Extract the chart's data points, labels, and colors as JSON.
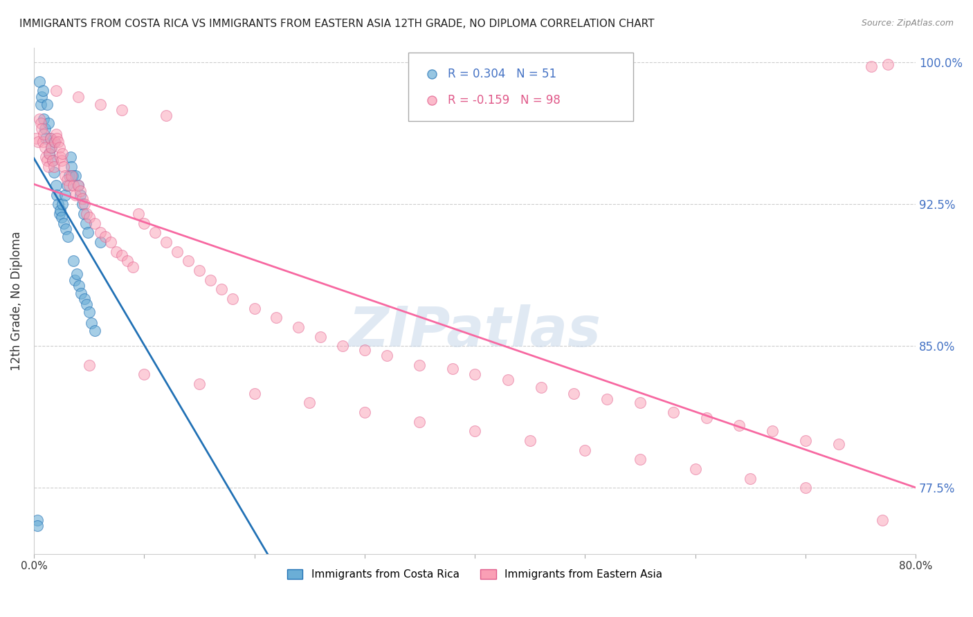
{
  "title": "IMMIGRANTS FROM COSTA RICA VS IMMIGRANTS FROM EASTERN ASIA 12TH GRADE, NO DIPLOMA CORRELATION CHART",
  "source": "Source: ZipAtlas.com",
  "ylabel": "12th Grade, No Diploma",
  "xlim": [
    0.0,
    0.8
  ],
  "ylim": [
    0.74,
    1.008
  ],
  "yticks": [
    0.775,
    0.85,
    0.925,
    1.0
  ],
  "yticklabels": [
    "77.5%",
    "85.0%",
    "92.5%",
    "100.0%"
  ],
  "blue_color": "#6baed6",
  "pink_color": "#fa9fb5",
  "blue_line_color": "#2171b5",
  "pink_line_color": "#f768a1",
  "watermark": "ZIPatlas",
  "legend_label1": "Immigrants from Costa Rica",
  "legend_label2": "Immigrants from Eastern Asia",
  "blue_scatter_x": [
    0.003,
    0.005,
    0.006,
    0.007,
    0.008,
    0.009,
    0.01,
    0.011,
    0.012,
    0.013,
    0.014,
    0.015,
    0.016,
    0.017,
    0.018,
    0.019,
    0.02,
    0.021,
    0.022,
    0.023,
    0.024,
    0.025,
    0.026,
    0.027,
    0.028,
    0.029,
    0.03,
    0.031,
    0.032,
    0.033,
    0.034,
    0.035,
    0.036,
    0.037,
    0.038,
    0.039,
    0.04,
    0.041,
    0.042,
    0.043,
    0.044,
    0.045,
    0.046,
    0.047,
    0.048,
    0.049,
    0.05,
    0.052,
    0.055,
    0.06,
    0.003
  ],
  "blue_scatter_y": [
    0.758,
    0.99,
    0.978,
    0.982,
    0.985,
    0.97,
    0.965,
    0.96,
    0.978,
    0.968,
    0.952,
    0.96,
    0.955,
    0.948,
    0.942,
    0.958,
    0.935,
    0.93,
    0.925,
    0.92,
    0.922,
    0.918,
    0.925,
    0.915,
    0.93,
    0.912,
    0.935,
    0.908,
    0.94,
    0.95,
    0.945,
    0.94,
    0.895,
    0.885,
    0.94,
    0.888,
    0.935,
    0.882,
    0.93,
    0.878,
    0.925,
    0.92,
    0.875,
    0.915,
    0.872,
    0.91,
    0.868,
    0.862,
    0.858,
    0.905,
    0.755
  ],
  "pink_scatter_x": [
    0.002,
    0.004,
    0.005,
    0.006,
    0.007,
    0.008,
    0.009,
    0.01,
    0.011,
    0.012,
    0.013,
    0.014,
    0.015,
    0.016,
    0.017,
    0.018,
    0.019,
    0.02,
    0.021,
    0.022,
    0.023,
    0.024,
    0.025,
    0.026,
    0.027,
    0.028,
    0.03,
    0.032,
    0.034,
    0.036,
    0.038,
    0.04,
    0.042,
    0.044,
    0.046,
    0.048,
    0.05,
    0.055,
    0.06,
    0.065,
    0.07,
    0.075,
    0.08,
    0.085,
    0.09,
    0.095,
    0.1,
    0.11,
    0.12,
    0.13,
    0.14,
    0.15,
    0.16,
    0.17,
    0.18,
    0.2,
    0.22,
    0.24,
    0.26,
    0.28,
    0.3,
    0.32,
    0.35,
    0.38,
    0.4,
    0.43,
    0.46,
    0.49,
    0.52,
    0.55,
    0.58,
    0.61,
    0.64,
    0.67,
    0.7,
    0.73,
    0.05,
    0.1,
    0.15,
    0.2,
    0.25,
    0.3,
    0.35,
    0.4,
    0.45,
    0.5,
    0.55,
    0.6,
    0.65,
    0.7,
    0.02,
    0.04,
    0.06,
    0.08,
    0.12,
    0.77,
    0.775,
    0.76
  ],
  "pink_scatter_y": [
    0.96,
    0.958,
    0.97,
    0.968,
    0.965,
    0.958,
    0.962,
    0.955,
    0.95,
    0.948,
    0.945,
    0.952,
    0.96,
    0.955,
    0.948,
    0.945,
    0.958,
    0.962,
    0.96,
    0.958,
    0.955,
    0.95,
    0.948,
    0.952,
    0.945,
    0.94,
    0.938,
    0.935,
    0.94,
    0.935,
    0.93,
    0.935,
    0.932,
    0.928,
    0.925,
    0.92,
    0.918,
    0.915,
    0.91,
    0.908,
    0.905,
    0.9,
    0.898,
    0.895,
    0.892,
    0.92,
    0.915,
    0.91,
    0.905,
    0.9,
    0.895,
    0.89,
    0.885,
    0.88,
    0.875,
    0.87,
    0.865,
    0.86,
    0.855,
    0.85,
    0.848,
    0.845,
    0.84,
    0.838,
    0.835,
    0.832,
    0.828,
    0.825,
    0.822,
    0.82,
    0.815,
    0.812,
    0.808,
    0.805,
    0.8,
    0.798,
    0.84,
    0.835,
    0.83,
    0.825,
    0.82,
    0.815,
    0.81,
    0.805,
    0.8,
    0.795,
    0.79,
    0.785,
    0.78,
    0.775,
    0.985,
    0.982,
    0.978,
    0.975,
    0.972,
    0.758,
    0.999,
    0.998
  ]
}
